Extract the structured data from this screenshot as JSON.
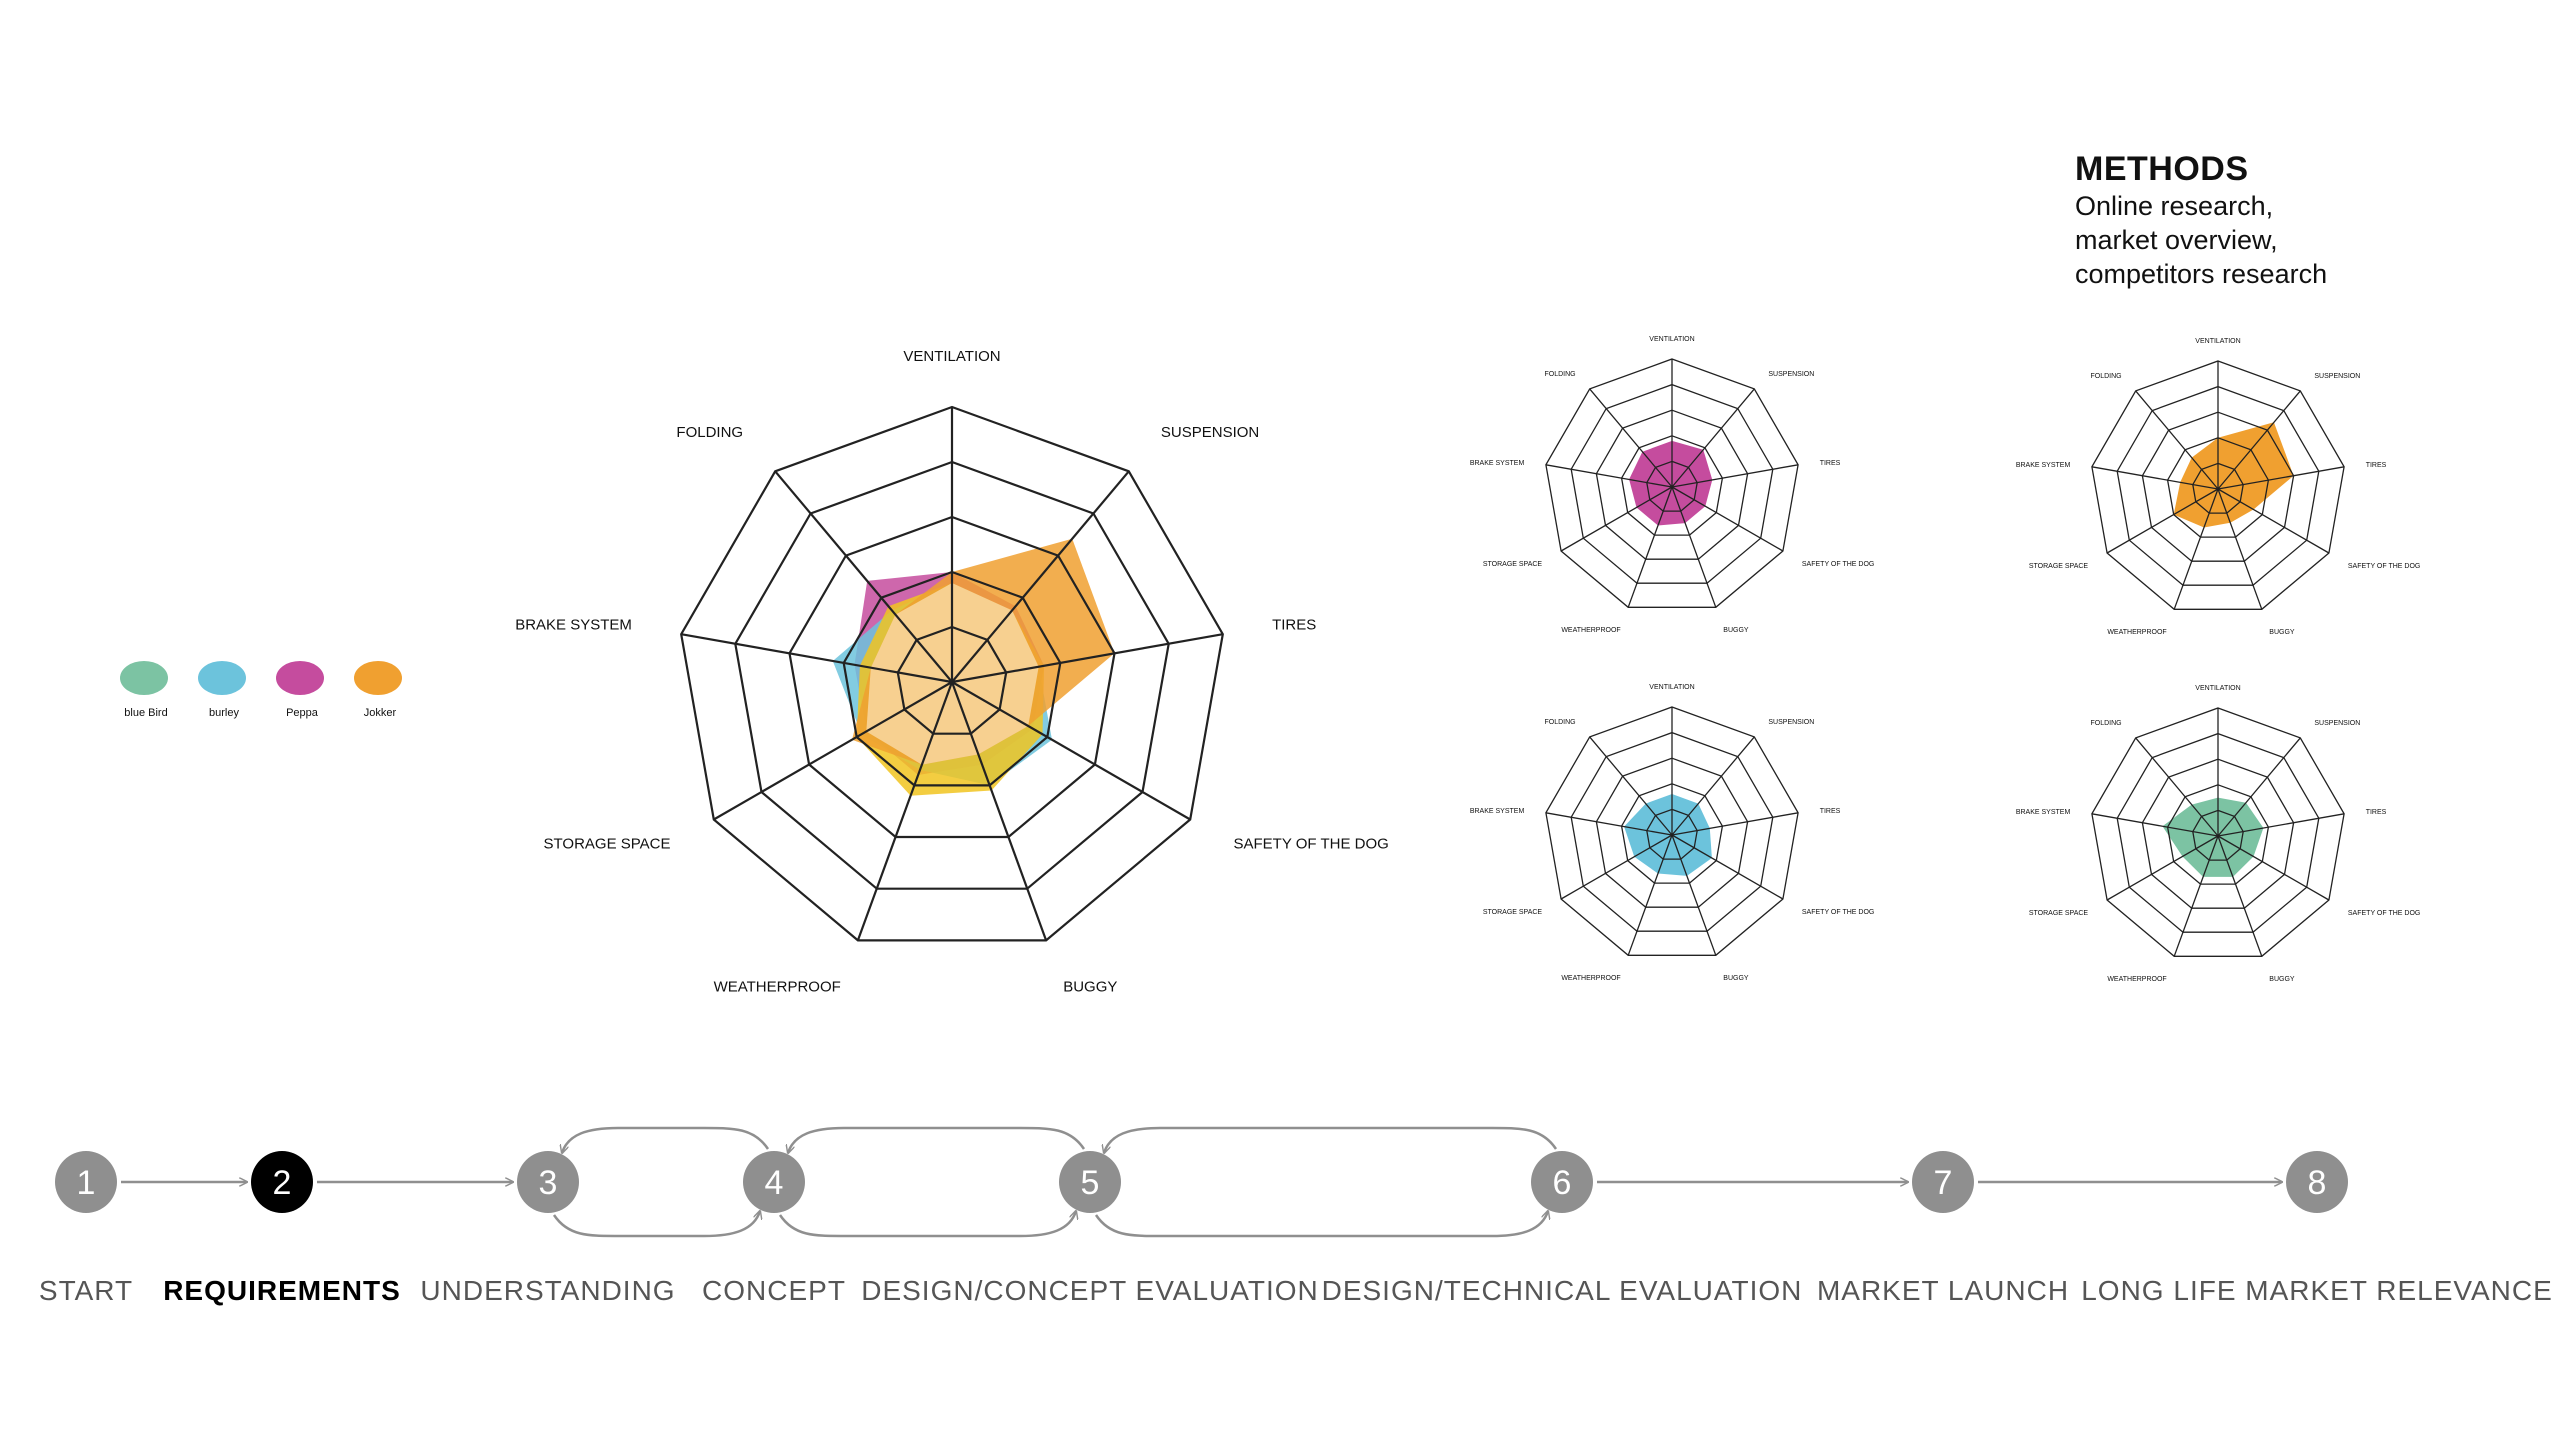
{
  "methods": {
    "heading": "METHODS",
    "lines": [
      "Online research,",
      "market overview,",
      "competitors research"
    ]
  },
  "chart_data": {
    "type": "radar",
    "axes": [
      "VENTILATION",
      "SUSPENSION",
      "TIRES",
      "SAFETY OF THE DOG",
      "BUGGY",
      "WEATHERPROOF",
      "STORAGE SPACE",
      "BRAKE SYSTEM",
      "FOLDING"
    ],
    "rmax": 5,
    "legend": [
      {
        "name": "blue Bird",
        "color": "#7cc3a3"
      },
      {
        "name": "burley",
        "color": "#6cc3dc"
      },
      {
        "name": "Peppa",
        "color": "#c54c9e"
      },
      {
        "name": "Jokker",
        "color": "#f0a030"
      }
    ],
    "combined": {
      "series": [
        {
          "name": "Peppa",
          "color": "#c54c9e",
          "values": [
            2.0,
            1.8,
            1.7,
            1.7,
            1.6,
            1.8,
            1.8,
            1.8,
            2.4
          ]
        },
        {
          "name": "burley",
          "color": "#6cc3dc",
          "values": [
            1.8,
            1.7,
            1.6,
            2.1,
            2.0,
            1.7,
            1.9,
            2.2,
            1.7
          ]
        },
        {
          "name": "blue Bird",
          "color": "#f1c420",
          "values": [
            1.8,
            1.7,
            1.7,
            1.9,
            2.1,
            2.2,
            2.0,
            1.7,
            1.8
          ]
        },
        {
          "name": "Jokker",
          "color": "#f0a030",
          "values": [
            2.0,
            3.4,
            3.0,
            1.6,
            1.4,
            1.6,
            2.1,
            1.5,
            1.6
          ]
        }
      ],
      "overlap_color": "#f7d090"
    },
    "small_multiples": [
      {
        "name": "Peppa",
        "color": "#c54c9e",
        "values": [
          1.8,
          1.9,
          1.6,
          1.5,
          1.5,
          1.6,
          1.6,
          1.7,
          1.8
        ]
      },
      {
        "name": "Jokker",
        "color": "#f0a030",
        "values": [
          2.0,
          3.4,
          3.0,
          1.6,
          1.4,
          1.6,
          2.0,
          1.5,
          1.6
        ]
      },
      {
        "name": "burley",
        "color": "#6cc3dc",
        "values": [
          1.6,
          1.6,
          1.5,
          1.8,
          1.7,
          1.6,
          1.7,
          1.9,
          1.6
        ]
      },
      {
        "name": "blue Bird",
        "color": "#7cc3a3",
        "values": [
          1.5,
          1.7,
          1.8,
          1.6,
          1.7,
          1.7,
          1.6,
          2.2,
          1.6
        ]
      }
    ]
  },
  "process": {
    "steps": [
      {
        "num": "1",
        "label": "START",
        "active": false
      },
      {
        "num": "2",
        "label": "REQUIREMENTS",
        "active": true
      },
      {
        "num": "3",
        "label": "UNDERSTANDING",
        "active": false
      },
      {
        "num": "4",
        "label": "CONCEPT",
        "active": false
      },
      {
        "num": "5",
        "label": "DESIGN/CONCEPT EVALUATION",
        "active": false
      },
      {
        "num": "6",
        "label": "DESIGN/TECHNICAL EVALUATION",
        "active": false
      },
      {
        "num": "7",
        "label": "MARKET LAUNCH",
        "active": false
      },
      {
        "num": "8",
        "label": "LONG LIFE MARKET RELEVANCE",
        "active": false
      }
    ],
    "colors": {
      "step": "#8f8f8f",
      "active": "#000000",
      "arrow": "#8f8f8f"
    }
  }
}
